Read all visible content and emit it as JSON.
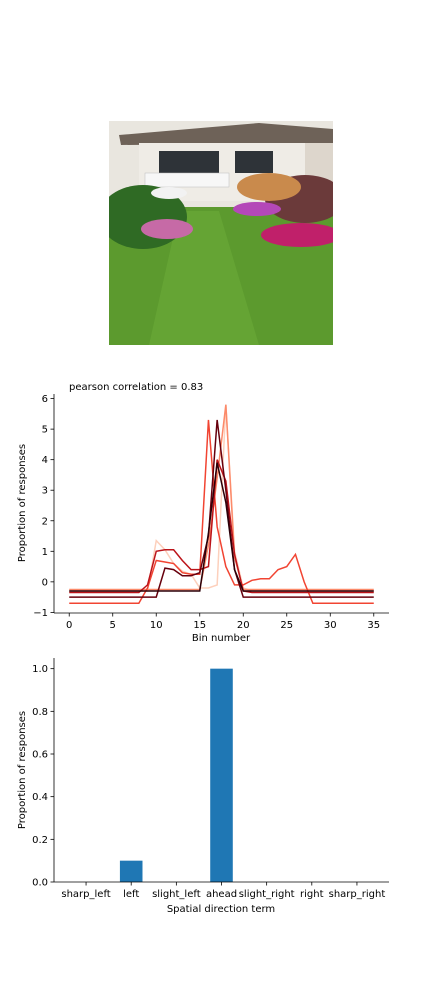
{
  "colors": {
    "bar": "#1f77b4",
    "photo_lawn": "#5c9a2e",
    "photo_house": "#e9e6df"
  },
  "chart_data": [
    {
      "type": "line",
      "annotation": "pearson correlation = 0.83",
      "xlabel": "Bin number",
      "ylabel": "Proportion of responses",
      "xlim": [
        -1.75,
        36.75
      ],
      "ylim": [
        -1.02,
        6.15
      ],
      "xticks": [
        0,
        5,
        10,
        15,
        20,
        25,
        30,
        35
      ],
      "yticks": [
        -1,
        0,
        1,
        2,
        3,
        4,
        5,
        6
      ],
      "x": [
        0,
        1,
        2,
        3,
        4,
        5,
        6,
        7,
        8,
        9,
        10,
        11,
        12,
        13,
        14,
        15,
        16,
        17,
        18,
        19,
        20,
        21,
        22,
        23,
        24,
        25,
        26,
        27,
        28,
        29,
        30,
        31,
        32,
        33,
        34,
        35
      ],
      "series": [
        {
          "color": "#fdd0bc",
          "values": [
            -0.3,
            -0.3,
            -0.3,
            -0.3,
            -0.3,
            -0.3,
            -0.3,
            -0.3,
            -0.3,
            -0.3,
            1.35,
            1.05,
            0.6,
            0.35,
            0.25,
            -0.2,
            -0.2,
            -0.1,
            5.8,
            1.0,
            -0.2,
            -0.3,
            -0.3,
            -0.3,
            -0.3,
            -0.3,
            -0.3,
            -0.3,
            -0.3,
            -0.3,
            -0.3,
            -0.3,
            -0.3,
            -0.3,
            -0.3,
            -0.3
          ]
        },
        {
          "color": "#fc8a6a",
          "values": [
            -0.25,
            -0.25,
            -0.25,
            -0.25,
            -0.25,
            -0.25,
            -0.25,
            -0.25,
            -0.25,
            -0.25,
            -0.25,
            -0.25,
            -0.25,
            -0.25,
            -0.25,
            -0.25,
            1.2,
            3.4,
            5.8,
            0.8,
            -0.25,
            -0.25,
            -0.25,
            -0.25,
            -0.25,
            -0.25,
            -0.25,
            -0.25,
            -0.25,
            -0.25,
            -0.25,
            -0.25,
            -0.25,
            -0.25,
            -0.25,
            -0.25
          ]
        },
        {
          "color": "#f14432",
          "values": [
            -0.7,
            -0.7,
            -0.7,
            -0.7,
            -0.7,
            -0.7,
            -0.7,
            -0.7,
            -0.7,
            -0.2,
            0.7,
            0.65,
            0.6,
            0.3,
            0.25,
            0.25,
            5.3,
            1.8,
            0.5,
            -0.1,
            -0.1,
            0.05,
            0.1,
            0.1,
            0.4,
            0.5,
            0.9,
            0.0,
            -0.7,
            -0.7,
            -0.7,
            -0.7,
            -0.7,
            -0.7,
            -0.7,
            -0.7
          ]
        },
        {
          "color": "#bc141a",
          "values": [
            -0.35,
            -0.35,
            -0.35,
            -0.35,
            -0.35,
            -0.35,
            -0.35,
            -0.35,
            -0.35,
            -0.1,
            1.0,
            1.05,
            1.05,
            0.7,
            0.4,
            0.4,
            0.5,
            4.0,
            3.3,
            0.9,
            -0.3,
            -0.35,
            -0.35,
            -0.35,
            -0.35,
            -0.35,
            -0.35,
            -0.35,
            -0.35,
            -0.35,
            -0.35,
            -0.35,
            -0.35,
            -0.35,
            -0.35,
            -0.35
          ]
        },
        {
          "color": "#67000d",
          "values": [
            -0.5,
            -0.5,
            -0.5,
            -0.5,
            -0.5,
            -0.5,
            -0.5,
            -0.5,
            -0.5,
            -0.5,
            -0.5,
            0.45,
            0.4,
            0.2,
            0.2,
            0.3,
            1.5,
            5.3,
            3.0,
            0.4,
            -0.5,
            -0.5,
            -0.5,
            -0.5,
            -0.5,
            -0.5,
            -0.5,
            -0.5,
            -0.5,
            -0.5,
            -0.5,
            -0.5,
            -0.5,
            -0.5,
            -0.5,
            -0.5
          ]
        },
        {
          "color": "#2b0008",
          "values": [
            -0.3,
            -0.3,
            -0.3,
            -0.3,
            -0.3,
            -0.3,
            -0.3,
            -0.3,
            -0.3,
            -0.3,
            -0.3,
            -0.3,
            -0.3,
            -0.3,
            -0.3,
            -0.3,
            1.6,
            3.9,
            2.6,
            0.4,
            -0.3,
            -0.3,
            -0.3,
            -0.3,
            -0.3,
            -0.3,
            -0.3,
            -0.3,
            -0.3,
            -0.3,
            -0.3,
            -0.3,
            -0.3,
            -0.3,
            -0.3,
            -0.3
          ]
        }
      ]
    },
    {
      "type": "bar",
      "xlabel": "Spatial direction term",
      "ylabel": "Proportion of responses",
      "ylim": [
        0,
        1.05
      ],
      "yticks": [
        0.0,
        0.2,
        0.4,
        0.6,
        0.8,
        1.0
      ],
      "ytick_labels": [
        "0.0",
        "0.2",
        "0.4",
        "0.6",
        "0.8",
        "1.0"
      ],
      "categories": [
        "sharp_left",
        "left",
        "slight_left",
        "ahead",
        "slight_right",
        "right",
        "sharp_right"
      ],
      "values": [
        0,
        0.1,
        0,
        1.0,
        0,
        0,
        0
      ]
    }
  ]
}
